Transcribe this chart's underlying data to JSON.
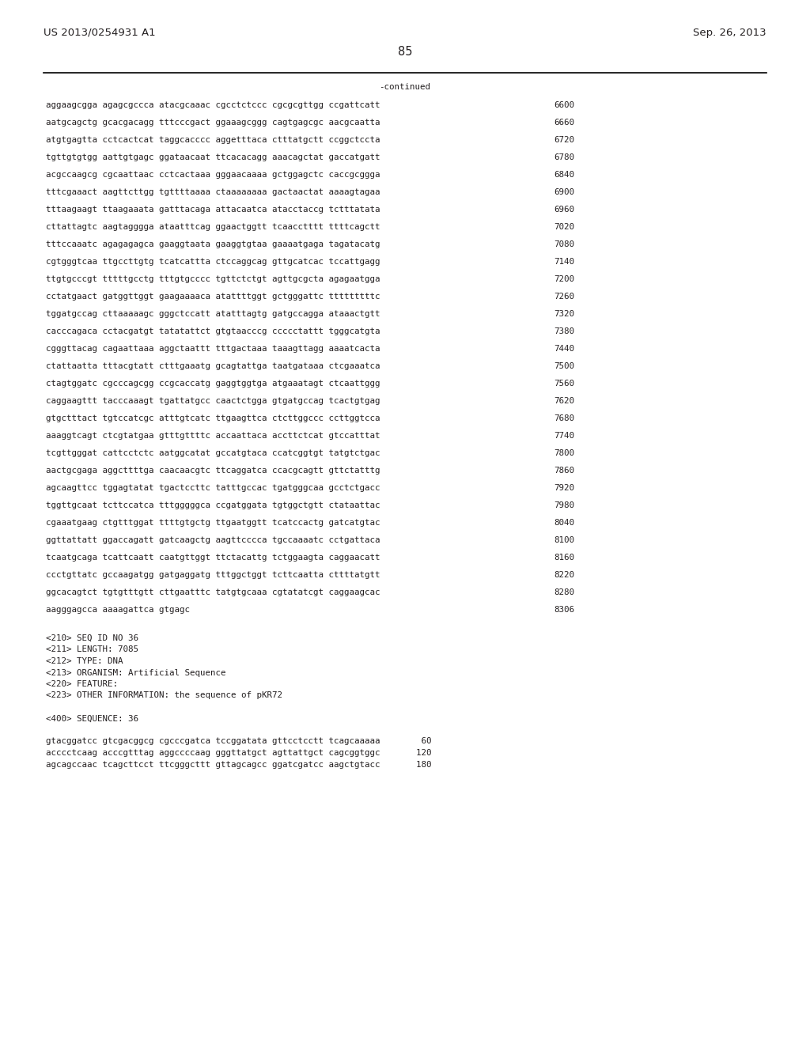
{
  "header_left": "US 2013/0254931 A1",
  "header_right": "Sep. 26, 2013",
  "page_number": "85",
  "continued_label": "-continued",
  "background_color": "#ffffff",
  "text_color": "#231f20",
  "font_size_header": 9.5,
  "font_size_body": 7.8,
  "font_size_page": 10.5,
  "sequence_lines": [
    [
      "aggaagcgga agagcgccca atacgcaaac cgcctctccc cgcgcgttgg ccgattcatt",
      "6600"
    ],
    [
      "aatgcagctg gcacgacagg tttcccgact ggaaagcggg cagtgagcgc aacgcaatta",
      "6660"
    ],
    [
      "atgtgagtta cctcactcat taggcacccc aggetttaca ctttatgctt ccggctccta",
      "6720"
    ],
    [
      "tgttgtgtgg aattgtgagc ggataacaat ttcacacagg aaacagctat gaccatgatt",
      "6780"
    ],
    [
      "acgccaagcg cgcaattaac cctcactaaa gggaacaaaa gctggagctc caccgcggga",
      "6840"
    ],
    [
      "tttcgaaact aagttcttgg tgttttaaaa ctaaaaaaaa gactaactat aaaagtagaa",
      "6900"
    ],
    [
      "tttaagaagt ttaagaaata gatttacaga attacaatca atacctaccg tctttatata",
      "6960"
    ],
    [
      "cttattagtc aagtagggga ataatttcag ggaactggtt tcaacctttt ttttcagctt",
      "7020"
    ],
    [
      "tttccaaatc agagagagca gaaggtaata gaaggtgtaa gaaaatgaga tagatacatg",
      "7080"
    ],
    [
      "cgtgggtcaa ttgccttgtg tcatcattta ctccaggcag gttgcatcac tccattgagg",
      "7140"
    ],
    [
      "ttgtgcccgt tttttgcctg tttgtgcccc tgttctctgt agttgcgcta agagaatgga",
      "7200"
    ],
    [
      "cctatgaact gatggttggt gaagaaaaca atattttggt gctgggattc tttttttttc",
      "7260"
    ],
    [
      "tggatgccag cttaaaaagc gggctccatt atatttagtg gatgccagga ataaactgtt",
      "7320"
    ],
    [
      "cacccagaca cctacgatgt tatatattct gtgtaacccg ccccctattt tgggcatgta",
      "7380"
    ],
    [
      "cgggttacag cagaattaaa aggctaattt tttgactaaa taaagttagg aaaatcacta",
      "7440"
    ],
    [
      "ctattaatta tttacgtatt ctttgaaatg gcagtattga taatgataaa ctcgaaatca",
      "7500"
    ],
    [
      "ctagtggatc cgcccagcgg ccgcaccatg gaggtggtga atgaaatagt ctcaattggg",
      "7560"
    ],
    [
      "caggaagttt tacccaaagt tgattatgcc caactctgga gtgatgccag tcactgtgag",
      "7620"
    ],
    [
      "gtgctttact tgtccatcgc atttgtcatc ttgaagttca ctcttggccc ccttggtcca",
      "7680"
    ],
    [
      "aaaggtcagt ctcgtatgaa gtttgttttc accaattaca accttctcat gtccatttat",
      "7740"
    ],
    [
      "tcgttgggat cattcctctc aatggcatat gccatgtaca ccatcggtgt tatgtctgac",
      "7800"
    ],
    [
      "aactgcgaga aggcttttga caacaacgtc ttcaggatca ccacgcagtt gttctatttg",
      "7860"
    ],
    [
      "agcaagttcc tggagtatat tgactccttc tatttgccac tgatgggcaa gcctctgacc",
      "7920"
    ],
    [
      "tggttgcaat tcttccatca tttgggggca ccgatggata tgtggctgtt ctataattac",
      "7980"
    ],
    [
      "cgaaatgaag ctgtttggat ttttgtgctg ttgaatggtt tcatccactg gatcatgtac",
      "8040"
    ],
    [
      "ggttattatt ggaccagatt gatcaagctg aagttcccca tgccaaaatc cctgattaca",
      "8100"
    ],
    [
      "tcaatgcaga tcattcaatt caatgttggt ttctacattg tctggaagta caggaacatt",
      "8160"
    ],
    [
      "ccctgttatc gccaagatgg gatgaggatg tttggctggt tcttcaatta cttttatgtt",
      "8220"
    ],
    [
      "ggcacagtct tgtgtttgtt cttgaatttc tatgtgcaaa cgtatatcgt caggaagcac",
      "8280"
    ],
    [
      "aagggagcca aaaagattca gtgagc",
      "8306"
    ]
  ],
  "meta_lines": [
    "<210> SEQ ID NO 36",
    "<211> LENGTH: 7085",
    "<212> TYPE: DNA",
    "<213> ORGANISM: Artificial Sequence",
    "<220> FEATURE:",
    "<223> OTHER INFORMATION: the sequence of pKR72",
    "",
    "<400> SEQUENCE: 36",
    "",
    "gtacggatcc gtcgacggcg cgcccgatca tccggatata gttcctcctt tcagcaaaaa        60",
    "acccctcaag acccgtttag aggccccaag gggttatgct agttattgct cagcggtggc       120",
    "agcagccaac tcagcttcct ttcgggcttt gttagcagcc ggatcgatcc aagctgtacc       180"
  ]
}
